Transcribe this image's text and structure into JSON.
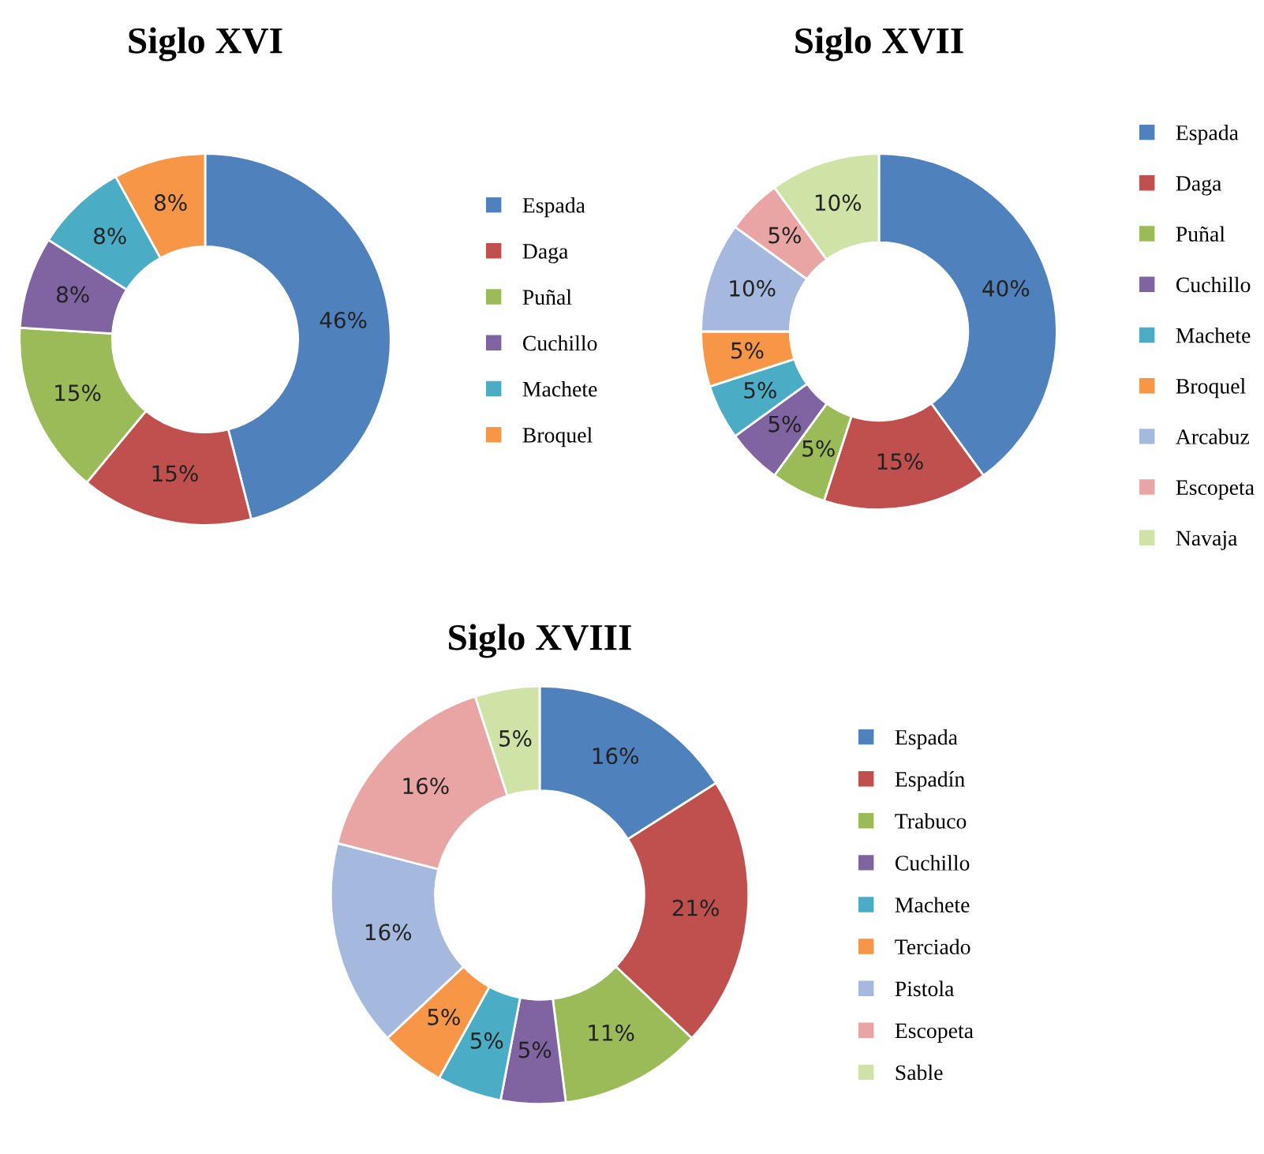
{
  "chart_data": [
    {
      "type": "donut",
      "title": "Siglo XVI",
      "categories": [
        "Espada",
        "Daga",
        "Puñal",
        "Cuchillo",
        "Machete",
        "Broquel"
      ],
      "values": [
        46,
        15,
        15,
        8,
        8,
        8
      ],
      "value_labels": [
        "46%",
        "15%",
        "15%",
        "8%",
        "8%",
        "8%"
      ],
      "colors": [
        "#4f81bd",
        "#c0504d",
        "#9bbb59",
        "#8064a2",
        "#4bacc6",
        "#f79646"
      ],
      "legend": "right"
    },
    {
      "type": "donut",
      "title": "Siglo XVII",
      "categories": [
        "Espada",
        "Daga",
        "Puñal",
        "Cuchillo",
        "Machete",
        "Broquel",
        "Arcabuz",
        "Escopeta",
        "Navaja"
      ],
      "values": [
        40,
        15,
        5,
        5,
        5,
        5,
        10,
        5,
        10
      ],
      "value_labels": [
        "40%",
        "15%",
        "5%",
        "5%",
        "5%",
        "5%",
        "10%",
        "5%",
        "10%"
      ],
      "colors": [
        "#4f81bd",
        "#c0504d",
        "#9bbb59",
        "#8064a2",
        "#4bacc6",
        "#f79646",
        "#a5b9df",
        "#e9a5a4",
        "#cfe3a6"
      ],
      "legend": "right"
    },
    {
      "type": "donut",
      "title": "Siglo XVIII",
      "categories": [
        "Espada",
        "Espadín",
        "Trabuco",
        "Cuchillo",
        "Machete",
        "Terciado",
        "Pistola",
        "Escopeta",
        "Sable"
      ],
      "values": [
        16,
        21,
        11,
        5,
        5,
        5,
        16,
        16,
        5
      ],
      "value_labels": [
        "16%",
        "21%",
        "11%",
        "5%",
        "5%",
        "5%",
        "16%",
        "16%",
        "5%"
      ],
      "colors": [
        "#4f81bd",
        "#c0504d",
        "#9bbb59",
        "#8064a2",
        "#4bacc6",
        "#f79646",
        "#a5b9df",
        "#e9a5a4",
        "#cfe3a6"
      ],
      "legend": "right"
    }
  ]
}
